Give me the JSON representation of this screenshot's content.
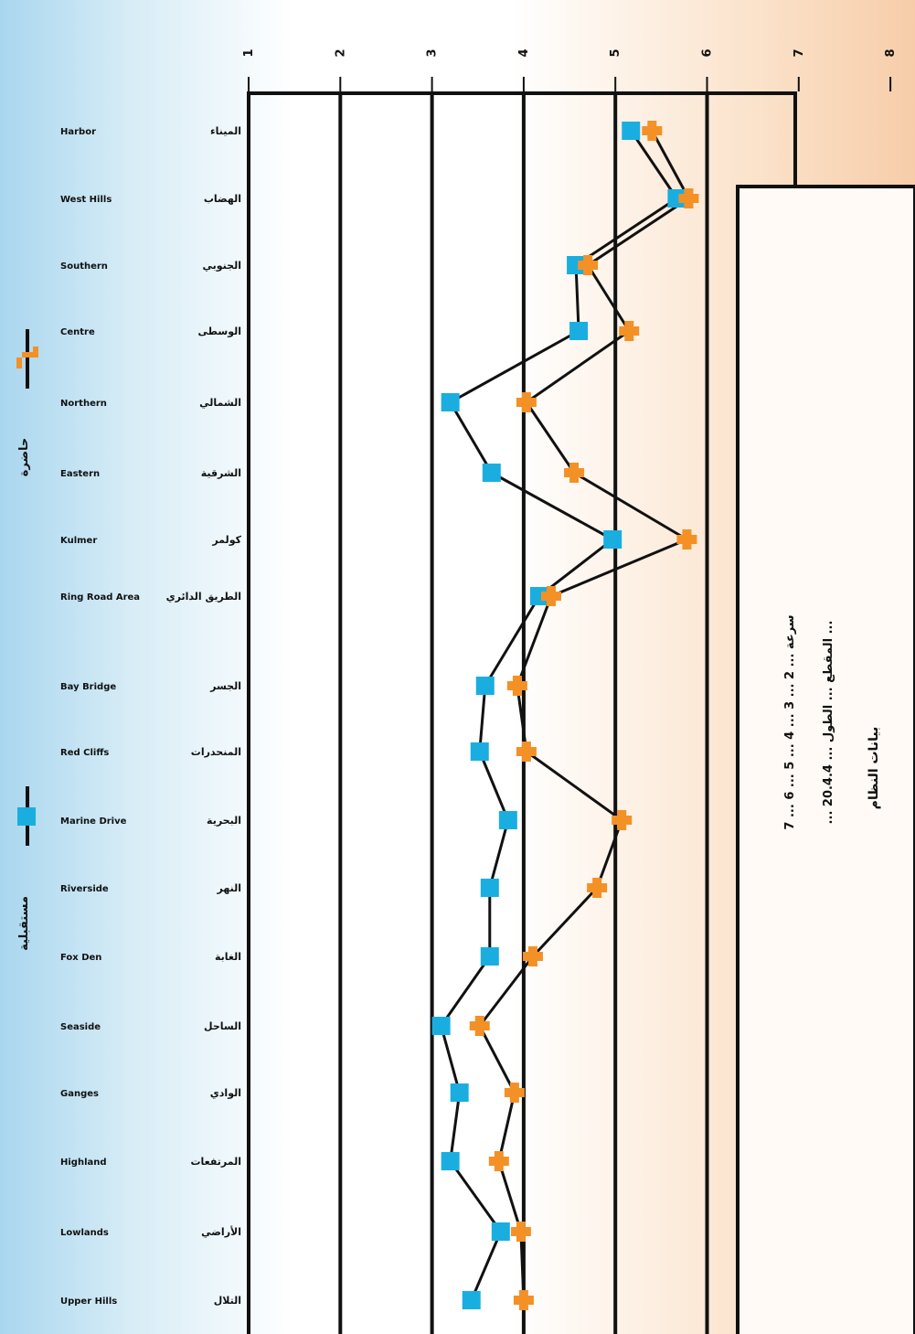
{
  "chart_data": {
    "type": "line",
    "title": "",
    "xlabel": "",
    "ylabel": "",
    "caption_lines": [
      "بيانات النظام",
      "سرعة ... 2 ... 3 ... 4 ... 5 ... 6 ... 7",
      "... المقطع ... الطول ... 20.4.4 ..."
    ],
    "axis": {
      "ticks": [
        "1",
        "2",
        "3",
        "4",
        "5",
        "6",
        "7",
        "8"
      ],
      "range": [
        1,
        7.5
      ]
    },
    "categories": [
      "Harbor",
      "West Hills",
      "Southern",
      "Centre",
      "Northern",
      "Eastern",
      "Kulmer",
      "Ring Road Area",
      "Bay Bridge",
      "Red Cliffs",
      "Marine Drive",
      "Riverside",
      "Fox Den",
      "Seaside",
      "Ganges",
      "Highland",
      "Lowlands",
      "Upper Hills"
    ],
    "categories_ar": [
      "الميناء",
      "الهضاب",
      "الجنوبي",
      "الوسطى",
      "الشمالي",
      "الشرقية",
      "كولمر",
      "الطريق الدائري",
      "الجسر",
      "المنحدرات",
      "البحرية",
      "النهر",
      "الغابة",
      "الساحل",
      "الوادي",
      "المرتفعات",
      "الأراضي",
      "التلال"
    ],
    "series": [
      {
        "name": "",
        "marker": "square",
        "color": "#1aaee0",
        "values": [
          5.17,
          5.67,
          4.57,
          4.6,
          3.2,
          3.65,
          4.97,
          4.17,
          3.58,
          3.52,
          3.83,
          3.63,
          3.63,
          3.1,
          3.3,
          3.2,
          3.75,
          3.43
        ]
      },
      {
        "name": "",
        "marker": "cross",
        "color": "#f39127",
        "values": [
          5.4,
          5.8,
          4.7,
          5.15,
          4.03,
          4.55,
          5.78,
          4.3,
          3.93,
          4.03,
          5.07,
          4.8,
          4.1,
          3.52,
          3.9,
          3.73,
          3.97,
          4.0
        ]
      }
    ]
  },
  "legend": {
    "top": {
      "label": "حاضرة",
      "marker_color": "#f39127"
    },
    "bottom": {
      "label": "مستقبلية",
      "marker_color": "#1aaee0"
    }
  }
}
